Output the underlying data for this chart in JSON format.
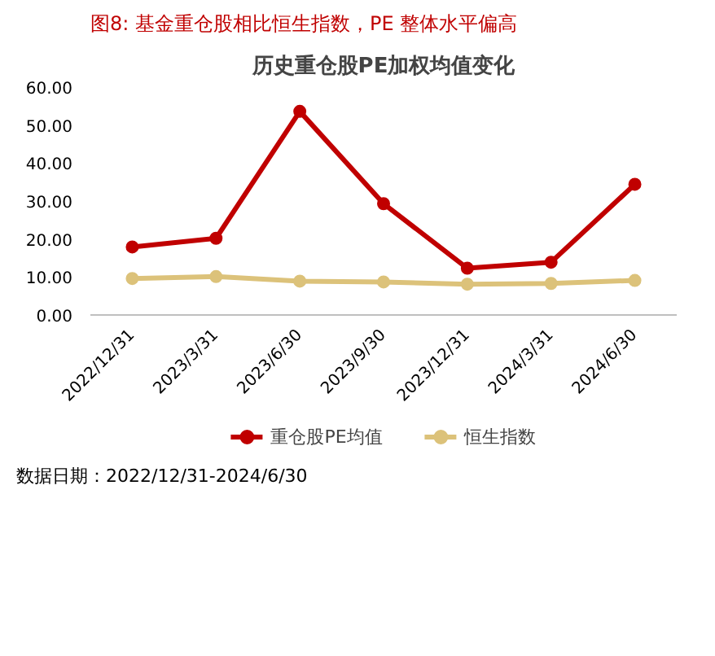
{
  "chart_data": {
    "type": "line",
    "title": "历史重仓股PE加权均值变化",
    "subtitle": "图8:  基金重仓股相比恒生指数，PE 整体水平偏高",
    "categories": [
      "2022/12/31",
      "2023/3/31",
      "2023/6/30",
      "2023/9/30",
      "2023/12/31",
      "2024/3/31",
      "2024/6/30"
    ],
    "series": [
      {
        "name": "重仓股PE均值",
        "color": "#c00000",
        "values": [
          17.9,
          20.2,
          53.6,
          29.3,
          12.3,
          13.9,
          34.4
        ]
      },
      {
        "name": "恒生指数",
        "color": "#dcc27a",
        "values": [
          9.6,
          10.1,
          8.9,
          8.7,
          8.1,
          8.3,
          9.1
        ]
      }
    ],
    "ylim": [
      0,
      60
    ],
    "yticks": [
      {
        "value": 0,
        "label": "0.00"
      },
      {
        "value": 10,
        "label": "10.00"
      },
      {
        "value": 20,
        "label": "20.00"
      },
      {
        "value": 30,
        "label": "30.00"
      },
      {
        "value": 40,
        "label": "40.00"
      },
      {
        "value": 50,
        "label": "50.00"
      },
      {
        "value": 60,
        "label": "60.00"
      }
    ],
    "grid": false,
    "legend": "bottom",
    "marker": "circle",
    "line_style": "solid",
    "annotations": [
      "数据日期：2022/12/31-2024/6/30"
    ]
  }
}
